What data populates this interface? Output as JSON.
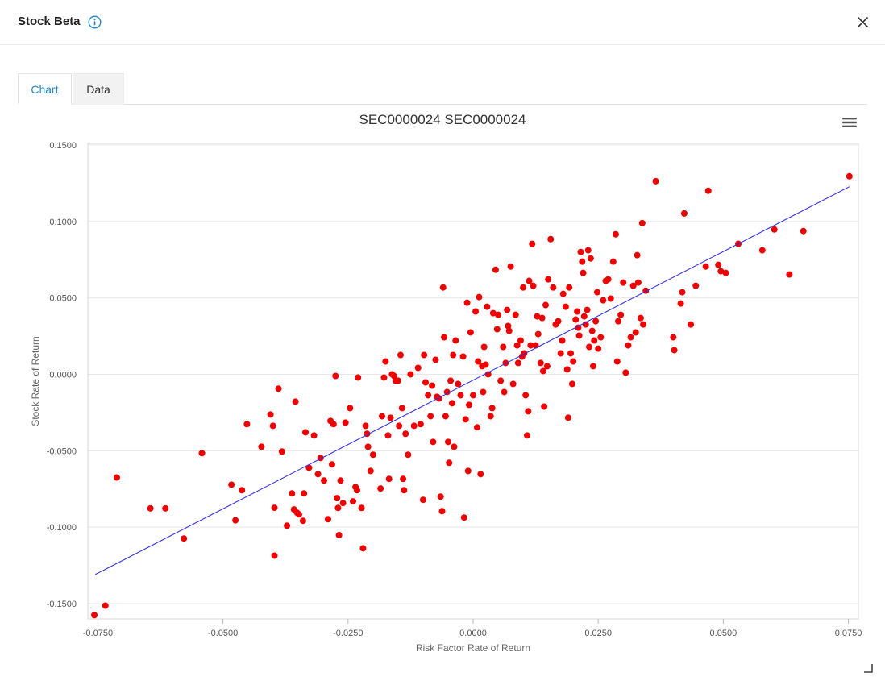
{
  "dialog": {
    "title": "Stock Beta"
  },
  "tabs": [
    {
      "label": "Chart",
      "active": true
    },
    {
      "label": "Data",
      "active": false
    }
  ],
  "chart_data": {
    "type": "scatter",
    "title": "SEC0000024 SEC0000024",
    "xlabel": "Risk Factor Rate of Return",
    "ylabel": "Stock Rate of Return",
    "xlim": [
      -0.077,
      0.077
    ],
    "ylim": [
      -0.16,
      0.151
    ],
    "xticks": [
      "-0.0750",
      "-0.0500",
      "-0.0250",
      "0.0000",
      "0.0250",
      "0.0500",
      "0.0750"
    ],
    "yticks": [
      "0.1500",
      "0.1000",
      "0.0500",
      "0.0000",
      "-0.0500",
      "-0.1000",
      "-0.1500"
    ],
    "grid": true,
    "colors": {
      "points": "#ee0000",
      "regression": "#3333dd",
      "accent": "#1e88d0"
    },
    "regression_line": {
      "x": [
        -0.0755,
        0.0752
      ],
      "y": [
        -0.1309,
        0.1227
      ]
    },
    "series": [
      {
        "values": [
          [
            -0.0757,
            -0.1575
          ],
          [
            -0.0735,
            -0.1513
          ],
          [
            -0.0712,
            -0.0675
          ],
          [
            -0.0645,
            -0.0877
          ],
          [
            -0.0615,
            -0.0877
          ],
          [
            -0.0578,
            -0.1074
          ],
          [
            -0.0542,
            -0.0516
          ],
          [
            -0.0483,
            -0.0722
          ],
          [
            -0.0475,
            -0.0955
          ],
          [
            -0.0462,
            -0.0758
          ],
          [
            -0.0452,
            -0.0326
          ],
          [
            -0.0423,
            -0.0474
          ],
          [
            -0.0405,
            -0.0263
          ],
          [
            -0.04,
            -0.0337
          ],
          [
            -0.0397,
            -0.0873
          ],
          [
            -0.0397,
            -0.1186
          ],
          [
            -0.0389,
            -0.0094
          ],
          [
            -0.0382,
            -0.0505
          ],
          [
            -0.0372,
            -0.099
          ],
          [
            -0.0362,
            -0.0779
          ],
          [
            -0.0358,
            -0.0884
          ],
          [
            -0.0355,
            -0.0179
          ],
          [
            -0.0352,
            -0.0905
          ],
          [
            -0.0348,
            -0.0916
          ],
          [
            -0.034,
            -0.0958
          ],
          [
            -0.0338,
            -0.0779
          ],
          [
            -0.0335,
            -0.0379
          ],
          [
            -0.0328,
            -0.0611
          ],
          [
            -0.0318,
            -0.04
          ],
          [
            -0.031,
            -0.0653
          ],
          [
            -0.0305,
            -0.0547
          ],
          [
            -0.0298,
            -0.0695
          ],
          [
            -0.029,
            -0.0948
          ],
          [
            -0.0285,
            -0.0305
          ],
          [
            -0.0282,
            -0.0589
          ],
          [
            -0.0279,
            -0.0326
          ],
          [
            -0.0275,
            -0.0011
          ],
          [
            -0.0272,
            -0.081
          ],
          [
            -0.027,
            -0.0874
          ],
          [
            -0.0268,
            -0.1052
          ],
          [
            -0.0265,
            -0.0695
          ],
          [
            -0.026,
            -0.0842
          ],
          [
            -0.0255,
            -0.0316
          ],
          [
            -0.0246,
            -0.0221
          ],
          [
            -0.024,
            -0.0831
          ],
          [
            -0.0235,
            -0.0737
          ],
          [
            -0.0232,
            -0.0758
          ],
          [
            -0.023,
            -0.0021
          ],
          [
            -0.0223,
            -0.0874
          ],
          [
            -0.022,
            -0.1138
          ],
          [
            -0.0215,
            -0.0337
          ],
          [
            -0.0212,
            -0.0389
          ],
          [
            -0.021,
            -0.0474
          ],
          [
            -0.0205,
            -0.0632
          ],
          [
            -0.02,
            -0.0526
          ],
          [
            -0.0185,
            -0.0747
          ],
          [
            -0.0182,
            -0.0274
          ],
          [
            -0.0178,
            -0.0021
          ],
          [
            -0.0175,
            0.0084
          ],
          [
            -0.017,
            -0.04
          ],
          [
            -0.0168,
            -0.0684
          ],
          [
            -0.0165,
            -0.0284
          ],
          [
            -0.0162,
            0.0
          ],
          [
            -0.0158,
            -0.0011
          ],
          [
            -0.0155,
            -0.0042
          ],
          [
            -0.015,
            -0.0042
          ],
          [
            -0.0148,
            -0.0337
          ],
          [
            -0.0145,
            0.0126
          ],
          [
            -0.0142,
            -0.0221
          ],
          [
            -0.014,
            -0.0684
          ],
          [
            -0.0138,
            -0.0758
          ],
          [
            -0.0135,
            -0.0389
          ],
          [
            -0.013,
            -0.0526
          ],
          [
            -0.0125,
            0.0
          ],
          [
            -0.0118,
            -0.0337
          ],
          [
            -0.011,
            0.0042
          ],
          [
            -0.0105,
            -0.0326
          ],
          [
            -0.01,
            -0.0821
          ],
          [
            -0.0098,
            0.0126
          ],
          [
            -0.0095,
            -0.0053
          ],
          [
            -0.009,
            -0.0137
          ],
          [
            -0.0085,
            -0.0274
          ],
          [
            -0.0082,
            -0.0074
          ],
          [
            -0.008,
            -0.0442
          ],
          [
            -0.0075,
            0.0095
          ],
          [
            -0.0072,
            -0.0147
          ],
          [
            -0.0068,
            -0.0158
          ],
          [
            -0.0065,
            -0.08
          ],
          [
            -0.0062,
            -0.0895
          ],
          [
            -0.006,
            0.0568
          ],
          [
            -0.0058,
            0.0242
          ],
          [
            -0.0055,
            -0.0274
          ],
          [
            -0.0052,
            -0.0116
          ],
          [
            -0.005,
            -0.0442
          ],
          [
            -0.0048,
            -0.0579
          ],
          [
            -0.0045,
            -0.0042
          ],
          [
            -0.0042,
            -0.0189
          ],
          [
            -0.004,
            0.0126
          ],
          [
            -0.0038,
            -0.0474
          ],
          [
            -0.0035,
            0.0221
          ],
          [
            -0.003,
            -0.0063
          ],
          [
            -0.0025,
            -0.0137
          ],
          [
            -0.002,
            0.0116
          ],
          [
            -0.0018,
            -0.0937
          ],
          [
            -0.0015,
            -0.0295
          ],
          [
            -0.0012,
            0.0468
          ],
          [
            -0.001,
            -0.0632
          ],
          [
            -0.0008,
            -0.02
          ],
          [
            -0.0005,
            0.0274
          ],
          [
            0.0,
            -0.0137
          ],
          [
            0.0005,
            0.0411
          ],
          [
            0.0008,
            -0.0347
          ],
          [
            0.001,
            0.0084
          ],
          [
            0.0012,
            0.0505
          ],
          [
            0.0015,
            -0.0653
          ],
          [
            0.0018,
            0.0053
          ],
          [
            0.002,
            -0.0116
          ],
          [
            0.0022,
            0.0179
          ],
          [
            0.0025,
            0.0063
          ],
          [
            0.0028,
            0.0442
          ],
          [
            0.003,
            0.0
          ],
          [
            0.0035,
            -0.0274
          ],
          [
            0.0038,
            -0.0221
          ],
          [
            0.004,
            0.04
          ],
          [
            0.0045,
            0.0684
          ],
          [
            0.0048,
            0.0295
          ],
          [
            0.005,
            0.0389
          ],
          [
            0.0055,
            -0.0042
          ],
          [
            0.006,
            0.0179
          ],
          [
            0.0062,
            -0.0116
          ],
          [
            0.0065,
            0.0074
          ],
          [
            0.0068,
            0.0421
          ],
          [
            0.007,
            0.0316
          ],
          [
            0.0072,
            0.0284
          ],
          [
            0.0075,
            0.0705
          ],
          [
            0.008,
            -0.0063
          ],
          [
            0.0085,
            0.0389
          ],
          [
            0.0088,
            0.0189
          ],
          [
            0.009,
            0.0074
          ],
          [
            0.0095,
            0.0221
          ],
          [
            0.0098,
            0.0116
          ],
          [
            0.01,
            0.0568
          ],
          [
            0.0102,
            0.0137
          ],
          [
            0.0105,
            -0.0137
          ],
          [
            0.0108,
            -0.04
          ],
          [
            0.011,
            -0.0242
          ],
          [
            0.0112,
            0.0611
          ],
          [
            0.0115,
            0.0189
          ],
          [
            0.0118,
            0.0853
          ],
          [
            0.012,
            0.0579
          ],
          [
            0.0125,
            0.0189
          ],
          [
            0.0128,
            0.0379
          ],
          [
            0.013,
            0.0263
          ],
          [
            0.0135,
            0.0074
          ],
          [
            0.0138,
            0.0368
          ],
          [
            0.014,
            0.0021
          ],
          [
            0.0142,
            -0.0211
          ],
          [
            0.0145,
            0.0453
          ],
          [
            0.0148,
            0.0053
          ],
          [
            0.015,
            0.0621
          ],
          [
            0.0155,
            0.0884
          ],
          [
            0.016,
            0.0568
          ],
          [
            0.0165,
            0.0326
          ],
          [
            0.017,
            0.0347
          ],
          [
            0.0175,
            0.0137
          ],
          [
            0.0178,
            0.0221
          ],
          [
            0.018,
            0.0526
          ],
          [
            0.0185,
            0.0442
          ],
          [
            0.0188,
            0.0032
          ],
          [
            0.019,
            -0.0284
          ],
          [
            0.0192,
            0.0568
          ],
          [
            0.0195,
            0.0137
          ],
          [
            0.0198,
            -0.0063
          ],
          [
            0.02,
            0.0084
          ],
          [
            0.0205,
            0.0358
          ],
          [
            0.0208,
            0.0411
          ],
          [
            0.021,
            0.0305
          ],
          [
            0.0212,
            0.0253
          ],
          [
            0.0215,
            0.08
          ],
          [
            0.0218,
            0.0737
          ],
          [
            0.022,
            0.0663
          ],
          [
            0.0222,
            0.0379
          ],
          [
            0.0225,
            0.0326
          ],
          [
            0.0228,
            0.0421
          ],
          [
            0.023,
            0.0811
          ],
          [
            0.0232,
            0.0179
          ],
          [
            0.0235,
            0.0758
          ],
          [
            0.0238,
            0.0284
          ],
          [
            0.024,
            0.0053
          ],
          [
            0.0242,
            0.0221
          ],
          [
            0.0245,
            0.0347
          ],
          [
            0.0248,
            0.0537
          ],
          [
            0.025,
            0.0168
          ],
          [
            0.0255,
            0.0242
          ],
          [
            0.026,
            0.0484
          ],
          [
            0.0265,
            0.0611
          ],
          [
            0.027,
            0.0621
          ],
          [
            0.0275,
            0.0495
          ],
          [
            0.028,
            0.0737
          ],
          [
            0.0285,
            0.0916
          ],
          [
            0.0288,
            0.0084
          ],
          [
            0.029,
            0.0347
          ],
          [
            0.0295,
            0.0389
          ],
          [
            0.03,
            0.06
          ],
          [
            0.0305,
            0.0011
          ],
          [
            0.031,
            0.0189
          ],
          [
            0.0315,
            0.0242
          ],
          [
            0.032,
            0.0579
          ],
          [
            0.0325,
            0.0274
          ],
          [
            0.0328,
            0.0779
          ],
          [
            0.033,
            0.06
          ],
          [
            0.0335,
            0.0368
          ],
          [
            0.0338,
            0.0989
          ],
          [
            0.034,
            0.0326
          ],
          [
            0.0345,
            0.0547
          ],
          [
            0.0365,
            0.1263
          ],
          [
            0.04,
            0.0242
          ],
          [
            0.0402,
            0.0158
          ],
          [
            0.0415,
            0.0463
          ],
          [
            0.0418,
            0.0537
          ],
          [
            0.0422,
            0.1052
          ],
          [
            0.0435,
            0.0326
          ],
          [
            0.0445,
            0.0579
          ],
          [
            0.0465,
            0.0705
          ],
          [
            0.047,
            0.12
          ],
          [
            0.049,
            0.0716
          ],
          [
            0.0495,
            0.0674
          ],
          [
            0.0505,
            0.0663
          ],
          [
            0.053,
            0.0853
          ],
          [
            0.0578,
            0.0811
          ],
          [
            0.0602,
            0.0947
          ],
          [
            0.0632,
            0.0653
          ],
          [
            0.066,
            0.0937
          ],
          [
            0.0752,
            0.1295
          ]
        ]
      }
    ]
  }
}
